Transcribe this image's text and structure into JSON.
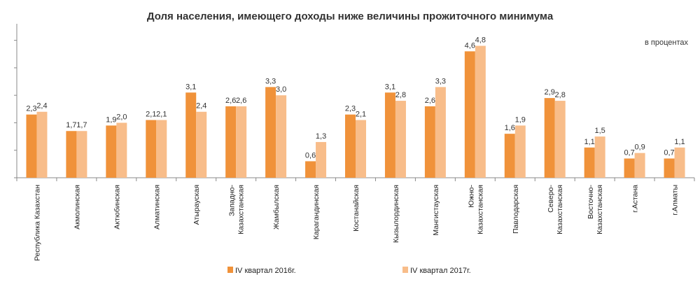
{
  "chart_data": {
    "type": "bar",
    "title": "Доля населения, имеющего доходы ниже величины  прожиточного  минимума",
    "units_label": "в процентах",
    "categories": [
      [
        "Республика Казахстан"
      ],
      [
        "Акмолинская"
      ],
      [
        "Актюбинская"
      ],
      [
        "Алматинская"
      ],
      [
        "Атырауская"
      ],
      [
        "Западно-",
        "Казахстанская"
      ],
      [
        "Жамбылская"
      ],
      [
        "Карагандинская"
      ],
      [
        "Костанайская"
      ],
      [
        "Кызылординская"
      ],
      [
        "Мангистауская"
      ],
      [
        "Южно-",
        "Казахстанская"
      ],
      [
        "Павлодарская"
      ],
      [
        "Северо-",
        "Казахстанская"
      ],
      [
        "Восточно-",
        "Казахстанская"
      ],
      [
        "г.Астана"
      ],
      [
        "г.Алматы"
      ]
    ],
    "series": [
      {
        "name": "IV квартал 2016г.",
        "color": "#f0923a",
        "values": [
          2.3,
          1.7,
          1.9,
          2.1,
          3.1,
          2.6,
          3.3,
          0.6,
          2.3,
          3.1,
          2.6,
          4.6,
          1.6,
          2.9,
          1.1,
          0.7,
          0.7
        ],
        "labels": [
          "2,3",
          "1,7",
          "1,9",
          "2,1",
          "3,1",
          "2,6",
          "3,3",
          "0,6",
          "2,3",
          "3,1",
          "2,6",
          "4,6",
          "1,6",
          "2,9",
          "1,1",
          "0,7",
          "0,7"
        ]
      },
      {
        "name": "IV квартал 2017г.",
        "color": "#f8bd8a",
        "values": [
          2.4,
          1.7,
          2.0,
          2.1,
          2.4,
          2.6,
          3.0,
          1.3,
          2.1,
          2.8,
          3.3,
          4.8,
          1.9,
          2.8,
          1.5,
          0.9,
          1.1
        ],
        "labels": [
          "2,4",
          "1,7",
          "2,0",
          "2,1",
          "2,4",
          "2,6",
          "3,0",
          "1,3",
          "2,1",
          "2,8",
          "3,3",
          "4,8",
          "1,9",
          "2,8",
          "1,5",
          "0,9",
          "1,1"
        ]
      }
    ],
    "ylim": [
      0,
      5.5
    ],
    "legend_position": "bottom",
    "grid": false
  }
}
